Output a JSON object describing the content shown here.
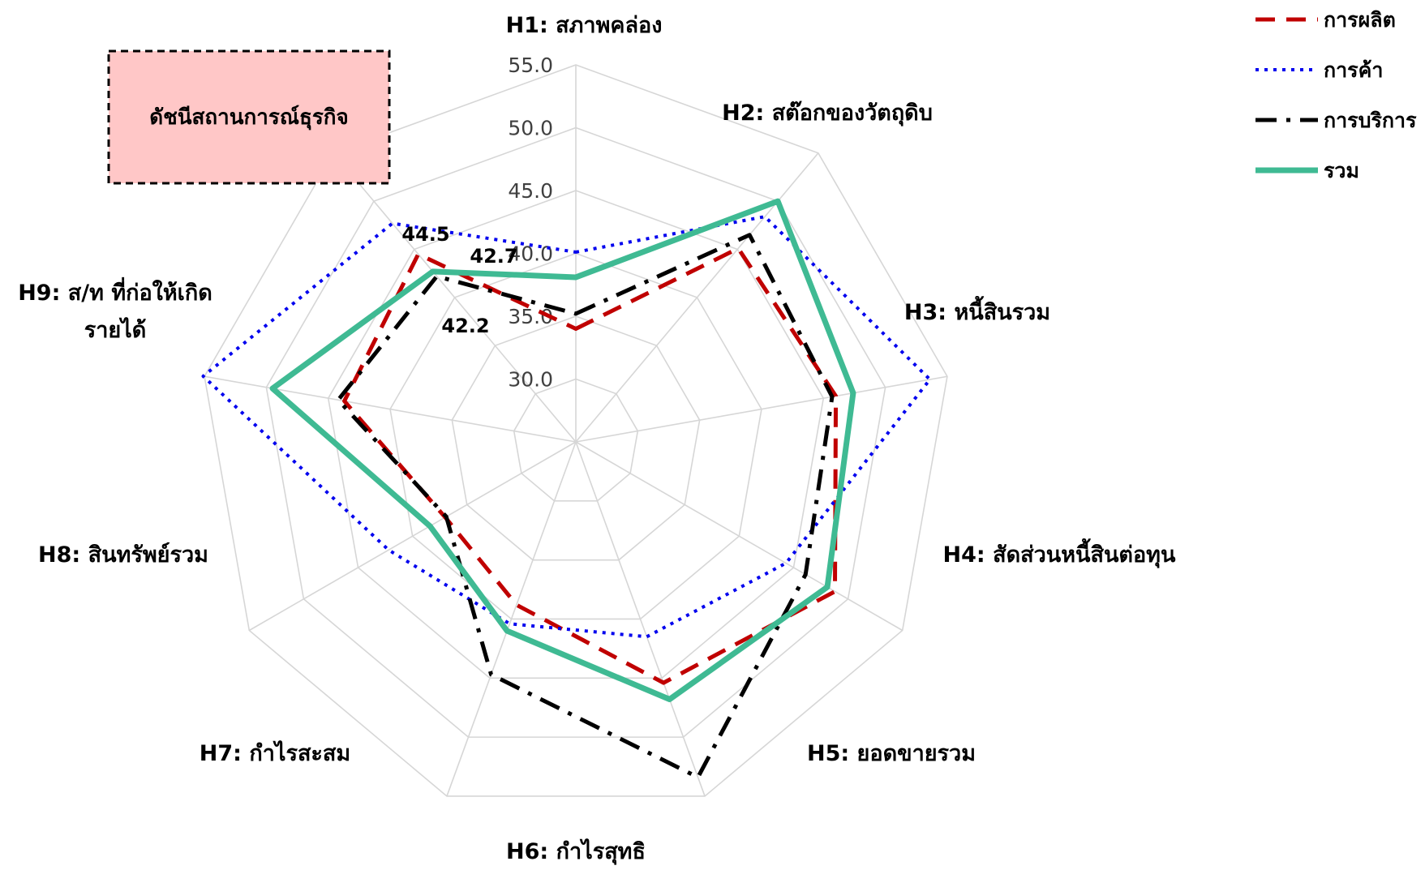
{
  "chart_data": {
    "type": "radar",
    "title": "ดัชนีสถานการณ์ธุรกิจ",
    "categories": [
      "H1: สภาพคล่อง",
      "H2: สต๊อกของวัตถุดิบ",
      "H3: หนี้สินรวม",
      "H4: สัดส่วนหนี้สินต่อทุน",
      "H5: ยอดขายรวม",
      "H6: กำไรสุทธิ",
      "H7: กำไรสะสม",
      "H8: สินทรัพย์รวม",
      [
        "H9: ส/ท ที่ก่อให้เกิด",
        "รายได้"
      ]
    ],
    "radial_ticks": [
      "30.0",
      "35.0",
      "40.0",
      "45.0",
      "50.0",
      "55.0"
    ],
    "rlim": [
      25,
      55
    ],
    "grid": true,
    "legend_position": "top-right",
    "series": [
      {
        "name": "การผลิต",
        "color": "#c00000",
        "dash": "dash",
        "values": [
          34.0,
          45.1,
          46.0,
          48.8,
          45.4,
          38.8,
          37.0,
          43.7,
          44.5
        ]
      },
      {
        "name": "การค้า",
        "color": "#0000ee",
        "dash": "dot",
        "values": [
          40.1,
          48.4,
          53.6,
          44.3,
          41.5,
          40.4,
          42.2,
          55.1,
          47.7
        ]
      },
      {
        "name": "การบริการ",
        "color": "#000000",
        "dash": "dashdot",
        "values": [
          35.2,
          46.5,
          45.7,
          46.1,
          53.4,
          44.7,
          36.9,
          44.2,
          42.2
        ]
      },
      {
        "name": "รวม",
        "color": "#3fba93",
        "dash": "solid",
        "values": [
          38.1,
          50.0,
          47.4,
          48.1,
          46.8,
          41.0,
          38.4,
          49.5,
          42.7
        ]
      }
    ],
    "data_labels": [
      "44.5",
      "42.7",
      "42.2"
    ]
  }
}
